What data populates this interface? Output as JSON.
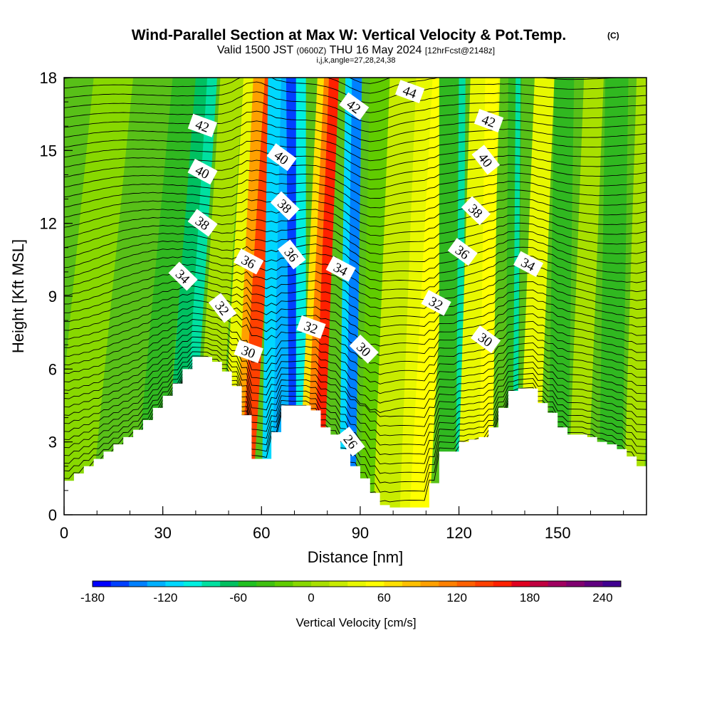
{
  "chart_data": {
    "type": "heatmap",
    "title": "Wind-Parallel Section at Max W: Vertical Velocity & Pot.Temp.",
    "title_mark": "(C)",
    "subtitle_main": "Valid 1500 JST",
    "subtitle_utc": "(0600Z)",
    "subtitle_date": "THU 16 May 2024",
    "subtitle_fcst": "[12hrFcst@2148z]",
    "subtitle2": "i,j,k,angle=27,28,24,38",
    "xlabel": "Distance [nm]",
    "ylabel": "Height [Kft MSL]",
    "colorbar_label": "Vertical Velocity [cm/s]",
    "xlim": [
      0,
      177
    ],
    "ylim": [
      0,
      18
    ],
    "x_ticks": [
      "0",
      "30",
      "60",
      "90",
      "120",
      "150"
    ],
    "y_ticks": [
      "0",
      "3",
      "6",
      "9",
      "12",
      "15",
      "18"
    ],
    "colorbar_ticks": [
      "-180",
      "-120",
      "-60",
      "0",
      "60",
      "120",
      "180",
      "240"
    ],
    "colorbar_levels": [
      -180,
      -165,
      -150,
      -135,
      -120,
      -105,
      -90,
      -75,
      -60,
      -45,
      -30,
      -15,
      0,
      15,
      30,
      45,
      60,
      75,
      90,
      105,
      120,
      135,
      150,
      165,
      180,
      195,
      210,
      225,
      240,
      255
    ],
    "colorbar_colors": [
      "#0000ff",
      "#0040ff",
      "#0080ff",
      "#00b0ff",
      "#00d8ff",
      "#00f0e0",
      "#00e0a0",
      "#00c060",
      "#20c020",
      "#40c010",
      "#60cc00",
      "#88d800",
      "#a8e000",
      "#c8ec00",
      "#e8f800",
      "#ffff00",
      "#ffe000",
      "#ffc000",
      "#ffa000",
      "#ff8000",
      "#ff6000",
      "#ff4000",
      "#ff2000",
      "#e00020",
      "#c00040",
      "#a00060",
      "#800070",
      "#600080",
      "#400090"
    ],
    "contour_labels": [
      {
        "x": 42,
        "y": 16.0,
        "text": "42"
      },
      {
        "x": 42,
        "y": 14.1,
        "text": "40"
      },
      {
        "x": 42,
        "y": 12.0,
        "text": "38"
      },
      {
        "x": 36,
        "y": 9.8,
        "text": "34"
      },
      {
        "x": 48,
        "y": 8.5,
        "text": "32"
      },
      {
        "x": 56,
        "y": 6.7,
        "text": "30"
      },
      {
        "x": 56,
        "y": 10.4,
        "text": "36"
      },
      {
        "x": 66,
        "y": 14.7,
        "text": "40"
      },
      {
        "x": 67,
        "y": 12.7,
        "text": "38"
      },
      {
        "x": 69,
        "y": 10.7,
        "text": "36"
      },
      {
        "x": 75,
        "y": 7.7,
        "text": "32"
      },
      {
        "x": 84,
        "y": 10.1,
        "text": "34"
      },
      {
        "x": 88,
        "y": 16.8,
        "text": "42"
      },
      {
        "x": 91,
        "y": 6.8,
        "text": "30"
      },
      {
        "x": 87,
        "y": 3.0,
        "text": "26"
      },
      {
        "x": 105,
        "y": 17.4,
        "text": "44"
      },
      {
        "x": 113,
        "y": 8.7,
        "text": "32"
      },
      {
        "x": 121,
        "y": 10.8,
        "text": "36"
      },
      {
        "x": 125,
        "y": 12.5,
        "text": "38"
      },
      {
        "x": 128,
        "y": 14.6,
        "text": "40"
      },
      {
        "x": 129,
        "y": 16.2,
        "text": "42"
      },
      {
        "x": 141,
        "y": 10.3,
        "text": "34"
      },
      {
        "x": 128,
        "y": 7.2,
        "text": "30"
      }
    ]
  }
}
